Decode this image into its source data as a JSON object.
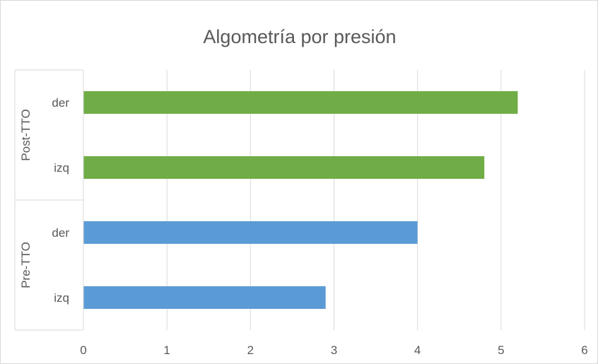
{
  "chart_data": {
    "type": "bar",
    "orientation": "horizontal",
    "title": "Algometría por presión",
    "xlabel": "",
    "ylabel": "",
    "xlim": [
      0,
      6
    ],
    "x_ticks": [
      "0",
      "1",
      "2",
      "3",
      "4",
      "5",
      "6"
    ],
    "grid": true,
    "legend": "none",
    "groups": [
      {
        "name": "Post-TTO",
        "color": "#70ad47",
        "bars": [
          {
            "label": "der",
            "value": 5.2
          },
          {
            "label": "izq",
            "value": 4.8
          }
        ]
      },
      {
        "name": "Pre-TTO",
        "color": "#5b9bd5",
        "bars": [
          {
            "label": "der",
            "value": 4.0
          },
          {
            "label": "izq",
            "value": 2.9
          }
        ]
      }
    ]
  }
}
